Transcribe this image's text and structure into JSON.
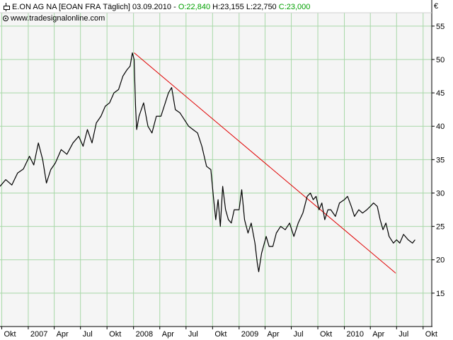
{
  "header": {
    "symbol": "E.ON AG NA [EOAN FRA",
    "period": "Täglich]",
    "date": "03.09.2010",
    "ohlc": [
      {
        "label": "O:22,840"
      },
      {
        "label": "H:23,155"
      },
      {
        "label": "L:22,750"
      },
      {
        "label": "C:23,000"
      }
    ],
    "watermark": "www.tradesignalonline.com",
    "currency": "€"
  },
  "colors": {
    "price": "#000000",
    "trendline": "#e00000",
    "grid": "#a8d8a8",
    "plot_bg": "#f5f5f5",
    "ohlc_text": "#00a000"
  },
  "chart_data": {
    "type": "line",
    "xlim": [
      "2006-09-25",
      "2010-10-31"
    ],
    "ylim": [
      10,
      57
    ],
    "y_ticks": [
      15,
      20,
      25,
      30,
      35,
      40,
      45,
      50,
      55
    ],
    "x_ticks": [
      {
        "date": "2006-10-01",
        "label": "Okt"
      },
      {
        "date": "2007-01-01",
        "label": "2007"
      },
      {
        "date": "2007-04-01",
        "label": "Apr"
      },
      {
        "date": "2007-07-01",
        "label": "Jul"
      },
      {
        "date": "2007-10-01",
        "label": "Okt"
      },
      {
        "date": "2008-01-01",
        "label": "2008"
      },
      {
        "date": "2008-04-01",
        "label": "Apr"
      },
      {
        "date": "2008-07-01",
        "label": "Jul"
      },
      {
        "date": "2008-10-01",
        "label": "Okt"
      },
      {
        "date": "2009-01-01",
        "label": "2009"
      },
      {
        "date": "2009-04-01",
        "label": "Apr"
      },
      {
        "date": "2009-07-01",
        "label": "Jul"
      },
      {
        "date": "2009-10-01",
        "label": "Okt"
      },
      {
        "date": "2010-01-01",
        "label": "2010"
      },
      {
        "date": "2010-04-01",
        "label": "Apr"
      },
      {
        "date": "2010-07-01",
        "label": "Jul"
      },
      {
        "date": "2010-10-01",
        "label": "Okt"
      }
    ],
    "grid": true,
    "series": [
      {
        "points": [
          [
            "2006-09-25",
            31.0
          ],
          [
            "2006-10-15",
            32.0
          ],
          [
            "2006-11-05",
            31.2
          ],
          [
            "2006-11-25",
            33.0
          ],
          [
            "2006-12-15",
            33.6
          ],
          [
            "2007-01-05",
            35.5
          ],
          [
            "2007-01-20",
            34.2
          ],
          [
            "2007-02-05",
            37.5
          ],
          [
            "2007-02-20",
            35.0
          ],
          [
            "2007-03-05",
            31.5
          ],
          [
            "2007-03-20",
            33.5
          ],
          [
            "2007-04-05",
            34.5
          ],
          [
            "2007-04-25",
            36.5
          ],
          [
            "2007-05-15",
            35.8
          ],
          [
            "2007-06-05",
            37.5
          ],
          [
            "2007-06-25",
            38.5
          ],
          [
            "2007-07-10",
            37.0
          ],
          [
            "2007-07-25",
            39.5
          ],
          [
            "2007-08-10",
            37.5
          ],
          [
            "2007-08-25",
            40.5
          ],
          [
            "2007-09-10",
            41.5
          ],
          [
            "2007-09-25",
            43.0
          ],
          [
            "2007-10-10",
            43.5
          ],
          [
            "2007-10-25",
            45.0
          ],
          [
            "2007-11-10",
            45.5
          ],
          [
            "2007-11-25",
            47.5
          ],
          [
            "2007-12-10",
            48.5
          ],
          [
            "2007-12-20",
            49.0
          ],
          [
            "2007-12-28",
            51.0
          ],
          [
            "2008-01-03",
            50.0
          ],
          [
            "2008-01-08",
            43.0
          ],
          [
            "2008-01-12",
            39.5
          ],
          [
            "2008-01-20",
            41.5
          ],
          [
            "2008-02-05",
            43.5
          ],
          [
            "2008-02-20",
            40.0
          ],
          [
            "2008-03-05",
            39.0
          ],
          [
            "2008-03-20",
            41.5
          ],
          [
            "2008-04-05",
            41.5
          ],
          [
            "2008-04-20",
            43.5
          ],
          [
            "2008-05-01",
            45.0
          ],
          [
            "2008-05-12",
            45.8
          ],
          [
            "2008-05-25",
            42.5
          ],
          [
            "2008-06-10",
            42.0
          ],
          [
            "2008-06-25",
            41.0
          ],
          [
            "2008-07-10",
            40.0
          ],
          [
            "2008-07-25",
            39.5
          ],
          [
            "2008-08-10",
            39.0
          ],
          [
            "2008-08-25",
            37.0
          ],
          [
            "2008-09-10",
            34.0
          ],
          [
            "2008-09-25",
            33.5
          ],
          [
            "2008-10-05",
            29.0
          ],
          [
            "2008-10-12",
            26.0
          ],
          [
            "2008-10-20",
            29.0
          ],
          [
            "2008-10-28",
            25.0
          ],
          [
            "2008-11-05",
            31.0
          ],
          [
            "2008-11-15",
            27.5
          ],
          [
            "2008-11-25",
            26.0
          ],
          [
            "2008-12-05",
            25.5
          ],
          [
            "2008-12-15",
            27.5
          ],
          [
            "2009-01-01",
            27.5
          ],
          [
            "2009-01-10",
            30.5
          ],
          [
            "2009-01-20",
            26.0
          ],
          [
            "2009-02-01",
            24.0
          ],
          [
            "2009-02-12",
            25.5
          ],
          [
            "2009-02-25",
            22.5
          ],
          [
            "2009-03-05",
            19.5
          ],
          [
            "2009-03-10",
            18.2
          ],
          [
            "2009-03-20",
            21.0
          ],
          [
            "2009-04-05",
            23.5
          ],
          [
            "2009-04-15",
            22.0
          ],
          [
            "2009-04-28",
            22.0
          ],
          [
            "2009-05-10",
            24.0
          ],
          [
            "2009-05-25",
            25.0
          ],
          [
            "2009-06-10",
            24.5
          ],
          [
            "2009-06-25",
            25.5
          ],
          [
            "2009-07-10",
            23.5
          ],
          [
            "2009-07-25",
            25.5
          ],
          [
            "2009-08-10",
            27.0
          ],
          [
            "2009-08-25",
            29.5
          ],
          [
            "2009-09-05",
            30.0
          ],
          [
            "2009-09-15",
            29.0
          ],
          [
            "2009-09-25",
            29.5
          ],
          [
            "2009-10-05",
            27.5
          ],
          [
            "2009-10-15",
            28.5
          ],
          [
            "2009-10-25",
            26.0
          ],
          [
            "2009-11-05",
            27.5
          ],
          [
            "2009-11-15",
            27.5
          ],
          [
            "2009-12-01",
            26.5
          ],
          [
            "2009-12-15",
            28.5
          ],
          [
            "2010-01-01",
            29.0
          ],
          [
            "2010-01-12",
            29.5
          ],
          [
            "2010-01-25",
            28.0
          ],
          [
            "2010-02-05",
            26.5
          ],
          [
            "2010-02-20",
            27.5
          ],
          [
            "2010-03-05",
            27.0
          ],
          [
            "2010-03-20",
            27.5
          ],
          [
            "2010-04-01",
            28.0
          ],
          [
            "2010-04-12",
            28.5
          ],
          [
            "2010-04-25",
            28.0
          ],
          [
            "2010-05-05",
            26.0
          ],
          [
            "2010-05-15",
            24.5
          ],
          [
            "2010-05-25",
            25.5
          ],
          [
            "2010-06-05",
            23.5
          ],
          [
            "2010-06-20",
            22.5
          ],
          [
            "2010-07-01",
            23.0
          ],
          [
            "2010-07-12",
            22.5
          ],
          [
            "2010-07-25",
            23.8
          ],
          [
            "2010-08-10",
            23.0
          ],
          [
            "2010-08-25",
            22.5
          ],
          [
            "2010-09-03",
            23.0
          ]
        ]
      }
    ],
    "trendline": {
      "start": [
        "2008-01-03",
        51.0
      ],
      "end": [
        "2010-06-28",
        18.0
      ]
    }
  }
}
